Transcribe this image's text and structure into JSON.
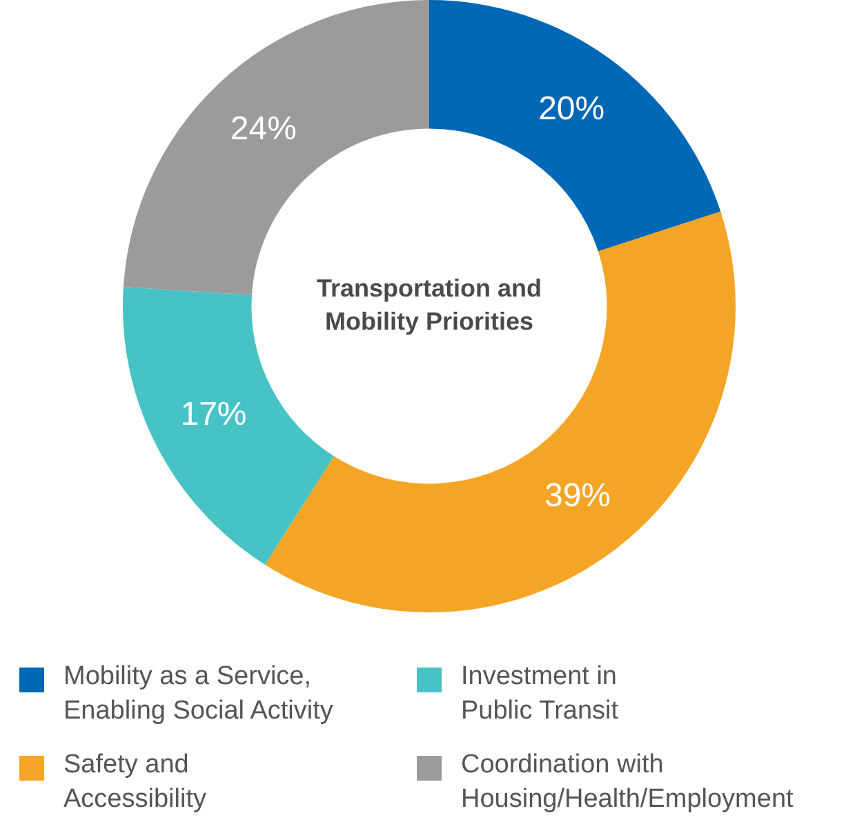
{
  "chart_data": {
    "type": "donut",
    "title": "Transportation and Mobility Priorities",
    "categories": [
      "Mobility as a Service, Enabling Social Activity",
      "Safety and Accessibility",
      "Investment in Public Transit",
      "Coordination with Housing/Health/Employment"
    ],
    "values": [
      20,
      39,
      17,
      24
    ],
    "colors": [
      "#0068b5",
      "#f5a526",
      "#48c3c5",
      "#9b9b9b"
    ],
    "value_labels": [
      "20%",
      "39%",
      "17%",
      "24%"
    ],
    "legend": "bottom"
  }
}
